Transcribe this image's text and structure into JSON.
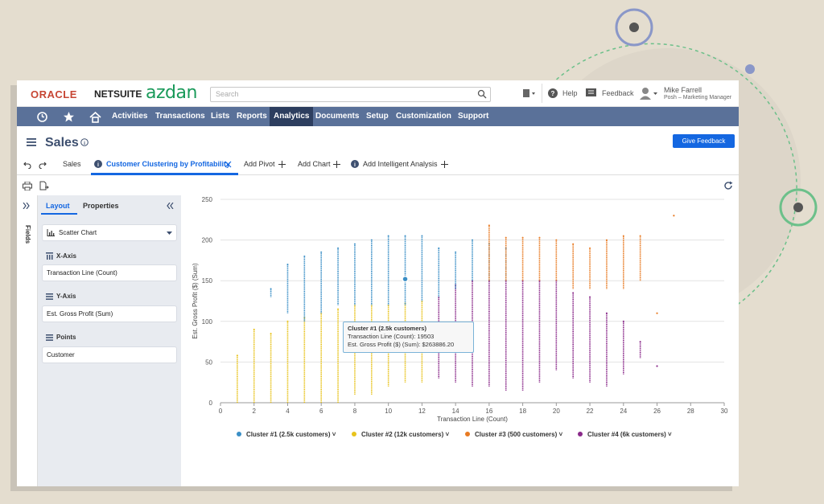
{
  "brand": {
    "oracle": "ORACLE",
    "netsuite": "NETSUITE",
    "partner": "azdan"
  },
  "search": {
    "placeholder": "Search"
  },
  "topbar": {
    "help": "Help",
    "feedback": "Feedback",
    "user_name": "Mike Farrell",
    "user_role": "Posh – Marketing Manager"
  },
  "nav": {
    "items": [
      "Activities",
      "Transactions",
      "Lists",
      "Reports",
      "Analytics",
      "Documents",
      "Setup",
      "Customization",
      "Support"
    ],
    "active": "Analytics"
  },
  "page": {
    "title": "Sales",
    "give_feedback": "Give Feedback"
  },
  "tabs": {
    "sales": "Sales",
    "active": "Customer Clustering by Profitability",
    "add_pivot": "Add Pivot",
    "add_chart": "Add Chart",
    "add_analysis": "Add Intelligent Analysis"
  },
  "panel": {
    "tab_layout": "Layout",
    "tab_properties": "Properties",
    "fields_label": "Fields",
    "chart_type": "Scatter Chart",
    "x_axis_label": "X-Axis",
    "x_axis_value": "Transaction Line (Count)",
    "y_axis_label": "Y-Axis",
    "y_axis_value": "Est. Gross Profit (Sum)",
    "points_label": "Points",
    "points_value": "Customer"
  },
  "tooltip": {
    "line1": "Cluster #1 (2.5k customers)",
    "line2": "Transaction Line (Count): 19503",
    "line3": "Est. Gross Profit ($) (Sum): $263886.20"
  },
  "colors": {
    "cluster1": "#3b8fc6",
    "cluster2": "#e8c31c",
    "cluster3": "#e87a22",
    "cluster4": "#8a2a8a",
    "nav": "#5a7199",
    "accent": "#1467e1"
  },
  "chart_data": {
    "type": "scatter",
    "xlabel": "Transaction Line (Count)",
    "ylabel": "Est. Gross Profit ($) (Sum)",
    "xlim": [
      0,
      30
    ],
    "ylim": [
      0,
      250
    ],
    "xticks": [
      "0",
      "2",
      "4",
      "6",
      "8",
      "10",
      "12",
      "14",
      "16",
      "18",
      "20",
      "22",
      "24",
      "26",
      "28",
      "30"
    ],
    "yticks": [
      "0",
      "50",
      "100",
      "150",
      "200",
      "250"
    ],
    "legend": "bottom",
    "series": [
      {
        "name": "Cluster #1 (2.5k customers)",
        "columns": [
          [
            3,
            130,
            140
          ],
          [
            4,
            110,
            170
          ],
          [
            5,
            100,
            180
          ],
          [
            6,
            110,
            185
          ],
          [
            7,
            120,
            190
          ],
          [
            8,
            120,
            195
          ],
          [
            9,
            120,
            200
          ],
          [
            10,
            120,
            205
          ],
          [
            11,
            120,
            205
          ],
          [
            12,
            125,
            205
          ],
          [
            13,
            130,
            190
          ],
          [
            14,
            140,
            185
          ],
          [
            15,
            150,
            200
          ],
          [
            16,
            150,
            195
          ],
          [
            17,
            150,
            190
          ]
        ]
      },
      {
        "name": "Cluster #2 (12k customers)",
        "columns": [
          [
            1,
            0,
            58
          ],
          [
            2,
            0,
            90
          ],
          [
            3,
            0,
            85
          ],
          [
            4,
            0,
            100
          ],
          [
            5,
            0,
            105
          ],
          [
            6,
            0,
            110
          ],
          [
            7,
            0,
            115
          ],
          [
            8,
            10,
            120
          ],
          [
            9,
            10,
            120
          ],
          [
            10,
            20,
            120
          ],
          [
            11,
            25,
            122
          ],
          [
            12,
            25,
            125
          ]
        ]
      },
      {
        "name": "Cluster #3 (500 customers)",
        "columns": [
          [
            16,
            150,
            218
          ],
          [
            17,
            150,
            203
          ],
          [
            18,
            150,
            203
          ],
          [
            19,
            150,
            203
          ],
          [
            20,
            150,
            200
          ],
          [
            21,
            140,
            195
          ],
          [
            22,
            140,
            190
          ],
          [
            23,
            140,
            200
          ],
          [
            24,
            140,
            205
          ],
          [
            25,
            150,
            205
          ],
          [
            26,
            110,
            110
          ],
          [
            27,
            230,
            230
          ]
        ]
      },
      {
        "name": "Cluster #4 (6k customers)",
        "columns": [
          [
            13,
            30,
            130
          ],
          [
            14,
            25,
            145
          ],
          [
            15,
            20,
            150
          ],
          [
            16,
            20,
            150
          ],
          [
            17,
            15,
            150
          ],
          [
            18,
            15,
            150
          ],
          [
            19,
            25,
            150
          ],
          [
            20,
            40,
            150
          ],
          [
            21,
            30,
            135
          ],
          [
            22,
            25,
            130
          ],
          [
            23,
            20,
            110
          ],
          [
            24,
            35,
            100
          ],
          [
            25,
            55,
            75
          ],
          [
            26,
            45,
            45
          ]
        ]
      }
    ]
  }
}
